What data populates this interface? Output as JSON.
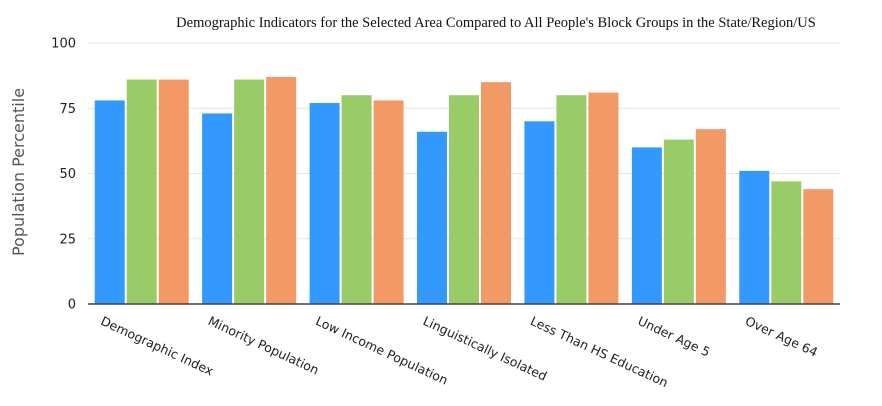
{
  "chart_data": {
    "type": "bar",
    "title": "Demographic Indicators for the Selected Area Compared to All People's Block Groups in the State/Region/US",
    "ylabel": "Population Percentile",
    "xlabel": "",
    "ylim": [
      0,
      100
    ],
    "yticks": [
      0,
      25,
      50,
      75,
      100
    ],
    "grid": true,
    "legend": "none",
    "categories": [
      "Demographic Index",
      "Minority Population",
      "Low Income Population",
      "Linguistically Isolated",
      "Less Than HS Education",
      "Under Age 5",
      "Over Age 64"
    ],
    "series": [
      {
        "color": "#3399ff",
        "values": [
          78,
          73,
          77,
          66,
          70,
          60,
          51
        ]
      },
      {
        "color": "#99cc66",
        "values": [
          86,
          86,
          80,
          80,
          80,
          63,
          47
        ]
      },
      {
        "color": "#f29966",
        "values": [
          86,
          87,
          78,
          85,
          81,
          67,
          44
        ]
      }
    ]
  }
}
